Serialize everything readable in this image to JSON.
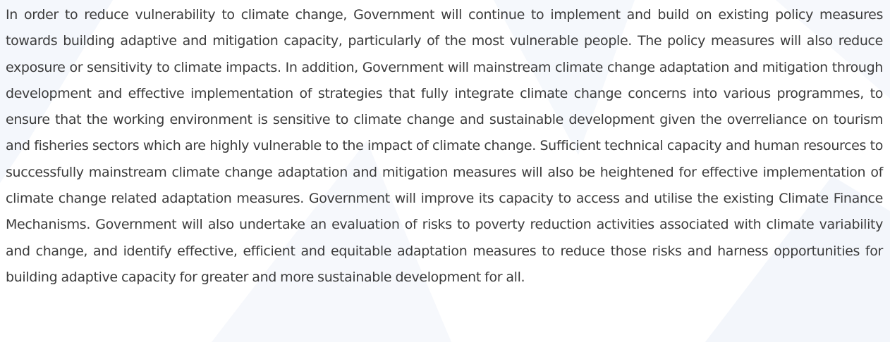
{
  "paragraph": "In order to reduce vulnerability to climate change, Government will continue to implement and build on existing policy measures towards building adaptive and mitigation capacity, particularly of the most vulnerable people. The policy measures will also reduce exposure or sensitivity to climate impacts. In addition, Government will mainstream climate change adaptation and mitigation through development and effective implementation of strategies that fully integrate climate change concerns into various programmes, to ensure that the working environment is sensitive to climate change and sustainable development given the overreliance on tourism and fisheries sectors which are highly vulnerable to the impact of climate change. Sufficient technical capacity and human resources to successfully mainstream climate change adaptation and mitigation measures will also be heightened for effective implementation of climate change related adaptation measures. Government will improve its capacity to access and utilise the existing Climate Finance Mechanisms. Government will also undertake an evaluation of risks to poverty reduction activities associated with climate variability and change, and identify effective, efficient and equitable adaptation measures to reduce those risks and harness opportunities for building adaptive capacity for greater and more sustainable development for all."
}
